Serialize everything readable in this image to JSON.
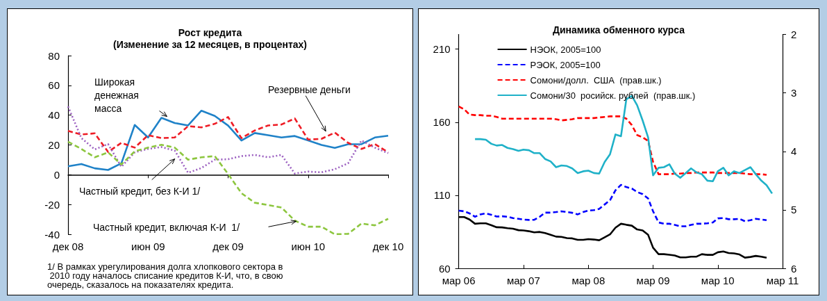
{
  "chart_data": [
    {
      "type": "line",
      "title": "Рост кредита",
      "subtitle": "(Изменение за 12 месяцев, в процентах)",
      "categories": [
        "дек 08",
        null,
        null,
        null,
        null,
        null,
        "июн 09",
        null,
        null,
        null,
        null,
        null,
        "дек 09",
        null,
        null,
        null,
        null,
        null,
        "июн 10",
        null,
        null,
        null,
        null,
        null,
        "дек 10"
      ],
      "ylim": [
        -40,
        80
      ],
      "yticks": [
        -40,
        -20,
        0,
        20,
        40,
        60,
        80
      ],
      "legend": false,
      "marker": "none",
      "series": [
        {
          "name": "Широкая денежная масса",
          "color": "#1f82c8",
          "line_style": "solid",
          "values": [
            5.6,
            7.2,
            4.3,
            3.2,
            7.7,
            33.4,
            25,
            38.2,
            34.7,
            33.1,
            43,
            39.5,
            33,
            23,
            28,
            26.5,
            25,
            26,
            23,
            20,
            18,
            20.5,
            20.5,
            25,
            26.2
          ]
        },
        {
          "name": "Резервные деньги",
          "color": "#ee1c25",
          "line_style": "dashed",
          "values": [
            29.4,
            27,
            27.8,
            15.3,
            21.4,
            18.2,
            26.5,
            24.6,
            25,
            32.6,
            31.8,
            34.2,
            38.7,
            24.6,
            29.7,
            33.1,
            33.7,
            37.8,
            23.6,
            24.1,
            28.3,
            21.4,
            17.3,
            20.6,
            15
          ]
        },
        {
          "name": "Частный кредит, без К-И 1/",
          "color": "#9b5fc0",
          "line_style": "dotted",
          "values": [
            45.8,
            24.6,
            17,
            20.6,
            5.3,
            15,
            17.3,
            18.6,
            16.2,
            1.3,
            4.5,
            10.1,
            10.4,
            12.5,
            13.3,
            11.7,
            13.3,
            0.8,
            2.1,
            1.6,
            3.7,
            7.7,
            23,
            18.2,
            14.5
          ]
        },
        {
          "name": "Частный кредит, включая К-И  1/",
          "color": "#8dc63f",
          "line_style": "dashed",
          "values": [
            22.2,
            17.3,
            11.7,
            15,
            6.9,
            15.7,
            18.2,
            20.1,
            18.2,
            10.1,
            11.7,
            12.5,
            0.5,
            -12.4,
            -18.8,
            -20.4,
            -22,
            -30.8,
            -34.9,
            -34.9,
            -40,
            -39.7,
            -32.8,
            -34,
            -29.6
          ]
        }
      ],
      "annotations": [
        "1/ В рамках урегулирования долга хлопкового сектора в 2010 году началось списание кредитов К-И, что, в свою очередь, сказалось на показателях кредита."
      ]
    },
    {
      "type": "line",
      "title": "Динамика обменного курса",
      "x": [
        "2006-03",
        "2006-04",
        "2006-05",
        "2006-06",
        "2006-07",
        "2006-08",
        "2006-09",
        "2006-10",
        "2006-11",
        "2006-12",
        "2007-01",
        "2007-02",
        "2007-03",
        "2007-04",
        "2007-05",
        "2007-06",
        "2007-07",
        "2007-08",
        "2007-09",
        "2007-10",
        "2007-11",
        "2007-12",
        "2008-01",
        "2008-02",
        "2008-03",
        "2008-04",
        "2008-05",
        "2008-06",
        "2008-07",
        "2008-08",
        "2008-09",
        "2008-10",
        "2008-11",
        "2008-12",
        "2009-01",
        "2009-02",
        "2009-03",
        "2009-04",
        "2009-05",
        "2009-06",
        "2009-07",
        "2009-08",
        "2009-09",
        "2009-10",
        "2009-11",
        "2009-12",
        "2010-01",
        "2010-02",
        "2010-03",
        "2010-04",
        "2010-05",
        "2010-06",
        "2010-07",
        "2010-08",
        "2010-09",
        "2010-10",
        "2010-11",
        "2010-12"
      ],
      "xlim": [
        "2006-03",
        "2011-03"
      ],
      "xticks": [
        {
          "value": "2006-03",
          "label": "мар 06"
        },
        {
          "value": "2007-03",
          "label": "мар 07"
        },
        {
          "value": "2008-03",
          "label": "мар 08"
        },
        {
          "value": "2009-03",
          "label": "мар 09"
        },
        {
          "value": "2010-03",
          "label": "мар 10"
        },
        {
          "value": "2011-03",
          "label": "мар 11"
        }
      ],
      "ylim": [
        60,
        220
      ],
      "yticks": [
        60,
        110,
        160,
        210
      ],
      "y2lim": [
        6,
        2
      ],
      "y2ticks": [
        2,
        3,
        4,
        5,
        6
      ],
      "legend": "top left",
      "marker": "none",
      "series": [
        {
          "name": "НЭОК, 2005=100",
          "color": "#000000",
          "line_style": "solid",
          "values": [
            95.1,
            95.1,
            93.4,
            90.5,
            90.8,
            90.8,
            89.5,
            88.1,
            88,
            87.5,
            87.1,
            86.1,
            85.9,
            85.4,
            84.6,
            84.9,
            84.1,
            82.9,
            81.7,
            81.5,
            80.7,
            80.5,
            79.5,
            79.5,
            80,
            79.7,
            79.2,
            81.2,
            83.2,
            87.8,
            90.5,
            89.8,
            89.2,
            86.6,
            85.9,
            82.9,
            74.1,
            69.7,
            69.7,
            69.3,
            68.8,
            67.5,
            67.5,
            68,
            68,
            69.7,
            69.2,
            69.2,
            71,
            71.5,
            70.5,
            70.2,
            69.5,
            67.3,
            67.8,
            68.5,
            68,
            67.3
          ]
        },
        {
          "name": "РЭОК, 2005=100",
          "color": "#0000ff",
          "line_style": "dashed",
          "values": [
            99.5,
            99,
            97.6,
            95.3,
            96.9,
            97.6,
            96.6,
            95.4,
            95.6,
            95.3,
            94.4,
            93.9,
            93.4,
            93.1,
            93.2,
            95.3,
            98.1,
            98.1,
            98.5,
            99,
            98.5,
            98,
            96.9,
            98.5,
            99.5,
            99.8,
            100.7,
            103.7,
            106.6,
            113.4,
            117.1,
            115.6,
            114.6,
            112.2,
            110.8,
            107.8,
            99,
            91.4,
            90.5,
            90.5,
            89.7,
            88.8,
            88.8,
            89.7,
            90.5,
            90.5,
            90.8,
            91.4,
            94.2,
            94.4,
            93.6,
            93.6,
            93.9,
            92.2,
            92.9,
            93.9,
            93.4,
            92.9
          ]
        },
        {
          "name": "Сомони/долл.  США  (прав.шк.)",
          "color": "#ff0000",
          "line_style": "dashed",
          "axis": "y2",
          "values": [
            3.23,
            3.28,
            3.37,
            3.38,
            3.38,
            3.39,
            3.39,
            3.41,
            3.44,
            3.44,
            3.44,
            3.44,
            3.44,
            3.44,
            3.44,
            3.44,
            3.44,
            3.44,
            3.45,
            3.47,
            3.46,
            3.45,
            3.43,
            3.43,
            3.43,
            3.43,
            3.42,
            3.41,
            3.4,
            3.4,
            3.4,
            3.44,
            3.55,
            3.72,
            3.76,
            3.82,
            4.18,
            4.39,
            4.39,
            4.39,
            4.38,
            4.38,
            4.37,
            4.37,
            4.36,
            4.36,
            4.36,
            4.36,
            4.37,
            4.37,
            4.37,
            4.37,
            4.37,
            4.38,
            4.39,
            4.39,
            4.39,
            4.4
          ]
        },
        {
          "name": "Сомони/30  росийск. рублей  (прав.шк.)",
          "color": "#1fb1c8",
          "line_style": "solid",
          "axis": "y2",
          "x": [
            "2006-06",
            "2006-07",
            "2006-08",
            "2006-09",
            "2006-10",
            "2006-11",
            "2006-12",
            "2007-01",
            "2007-02",
            "2007-03",
            "2007-04",
            "2007-05",
            "2007-06",
            "2007-07",
            "2007-08",
            "2007-09",
            "2007-10",
            "2007-11",
            "2007-12",
            "2008-01",
            "2008-02",
            "2008-03",
            "2008-04",
            "2008-05",
            "2008-06",
            "2008-07",
            "2008-08",
            "2008-09",
            "2008-10",
            "2008-11",
            "2008-12",
            "2009-01",
            "2009-02",
            "2009-03",
            "2009-04",
            "2009-05",
            "2009-06",
            "2009-07",
            "2009-08",
            "2009-09",
            "2009-10",
            "2009-11",
            "2009-12",
            "2010-01",
            "2010-02",
            "2010-03",
            "2010-04",
            "2010-05",
            "2010-06",
            "2010-07",
            "2010-08",
            "2010-09",
            "2010-10",
            "2010-11",
            "2010-12",
            "2011-01"
          ],
          "values": [
            3.79,
            3.79,
            3.8,
            3.87,
            3.9,
            3.89,
            3.94,
            3.96,
            3.99,
            3.97,
            3.98,
            4.03,
            4.03,
            4.13,
            4.17,
            4.27,
            4.24,
            4.25,
            4.29,
            4.37,
            4.34,
            4.33,
            4.37,
            4.38,
            4.18,
            4.05,
            3.71,
            3.74,
            3.11,
            3.05,
            3.21,
            3.47,
            3.76,
            4.41,
            4.28,
            4.27,
            4.22,
            4.38,
            4.45,
            4.37,
            4.29,
            4.36,
            4.39,
            4.5,
            4.51,
            4.34,
            4.28,
            4.41,
            4.34,
            4.37,
            4.32,
            4.27,
            4.39,
            4.5,
            4.58,
            4.72
          ]
        }
      ]
    }
  ]
}
